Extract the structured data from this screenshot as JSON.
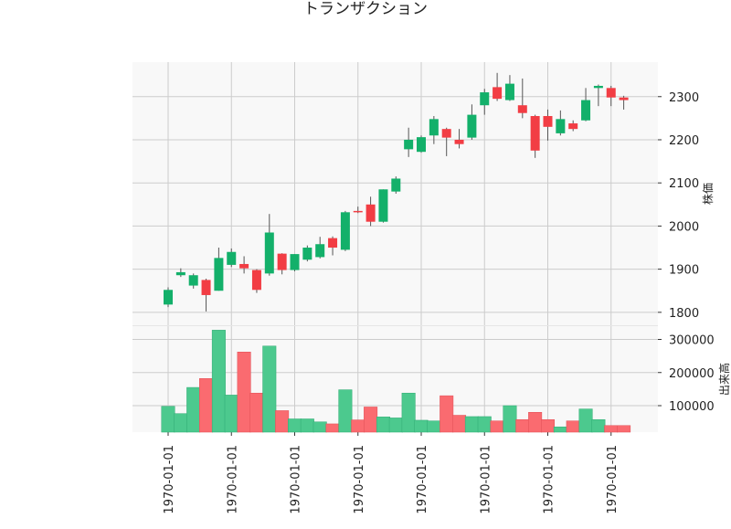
{
  "chart_data": {
    "type": "candlestick",
    "title": "トランザクション",
    "price_axis_label": "株価",
    "volume_axis_label": "出来高",
    "price_ylim": [
      1770,
      2380
    ],
    "volume_ylim": [
      20000,
      340000
    ],
    "price_ticks": [
      1800,
      1900,
      2000,
      2100,
      2200,
      2300
    ],
    "volume_ticks": [
      100000,
      200000,
      300000
    ],
    "volume_tick_labels": [
      "100000",
      "200000",
      "300000"
    ],
    "x_tick_labels": [
      "1970-01-01",
      "1970-01-01",
      "1970-01-01",
      "1970-01-01",
      "1970-01-01",
      "1970-01-01",
      "1970-01-01",
      "1970-01-01"
    ],
    "x_tick_indices": [
      0,
      5,
      10,
      15,
      20,
      25,
      30,
      35
    ],
    "grid": true,
    "colors": {
      "up": "#13b06a",
      "down": "#f23d44",
      "up_volume": "#4cc98e",
      "down_volume": "#fa6b70",
      "wick": "#555555",
      "panel_bg": "#f8f8f8",
      "grid": "#cccccc"
    },
    "candles": [
      {
        "open": 1818,
        "high": 1858,
        "low": 1812,
        "close": 1852
      },
      {
        "open": 1886,
        "high": 1902,
        "low": 1882,
        "close": 1893
      },
      {
        "open": 1862,
        "high": 1890,
        "low": 1855,
        "close": 1886
      },
      {
        "open": 1875,
        "high": 1878,
        "low": 1802,
        "close": 1840
      },
      {
        "open": 1850,
        "high": 1950,
        "low": 1850,
        "close": 1926
      },
      {
        "open": 1910,
        "high": 1948,
        "low": 1905,
        "close": 1940
      },
      {
        "open": 1912,
        "high": 1930,
        "low": 1890,
        "close": 1902
      },
      {
        "open": 1898,
        "high": 1900,
        "low": 1845,
        "close": 1852
      },
      {
        "open": 1890,
        "high": 2028,
        "low": 1885,
        "close": 1985
      },
      {
        "open": 1936,
        "high": 1937,
        "low": 1888,
        "close": 1898
      },
      {
        "open": 1898,
        "high": 1935,
        "low": 1895,
        "close": 1935
      },
      {
        "open": 1922,
        "high": 1955,
        "low": 1918,
        "close": 1950
      },
      {
        "open": 1928,
        "high": 1975,
        "low": 1925,
        "close": 1958
      },
      {
        "open": 1972,
        "high": 1976,
        "low": 1932,
        "close": 1950
      },
      {
        "open": 1945,
        "high": 2035,
        "low": 1942,
        "close": 2032
      },
      {
        "open": 2035,
        "high": 2045,
        "low": 2030,
        "close": 2033
      },
      {
        "open": 2050,
        "high": 2068,
        "low": 2000,
        "close": 2010
      },
      {
        "open": 2010,
        "high": 2085,
        "low": 2008,
        "close": 2085
      },
      {
        "open": 2080,
        "high": 2115,
        "low": 2075,
        "close": 2110
      },
      {
        "open": 2178,
        "high": 2228,
        "low": 2160,
        "close": 2200
      },
      {
        "open": 2172,
        "high": 2210,
        "low": 2170,
        "close": 2206
      },
      {
        "open": 2210,
        "high": 2255,
        "low": 2190,
        "close": 2248
      },
      {
        "open": 2225,
        "high": 2228,
        "low": 2162,
        "close": 2205
      },
      {
        "open": 2200,
        "high": 2225,
        "low": 2180,
        "close": 2190
      },
      {
        "open": 2205,
        "high": 2282,
        "low": 2200,
        "close": 2258
      },
      {
        "open": 2280,
        "high": 2318,
        "low": 2258,
        "close": 2310
      },
      {
        "open": 2322,
        "high": 2355,
        "low": 2290,
        "close": 2295
      },
      {
        "open": 2292,
        "high": 2350,
        "low": 2290,
        "close": 2330
      },
      {
        "open": 2280,
        "high": 2342,
        "low": 2250,
        "close": 2262
      },
      {
        "open": 2255,
        "high": 2258,
        "low": 2158,
        "close": 2175
      },
      {
        "open": 2255,
        "high": 2270,
        "low": 2198,
        "close": 2230
      },
      {
        "open": 2215,
        "high": 2268,
        "low": 2210,
        "close": 2248
      },
      {
        "open": 2238,
        "high": 2245,
        "low": 2220,
        "close": 2225
      },
      {
        "open": 2245,
        "high": 2320,
        "low": 2243,
        "close": 2292
      },
      {
        "open": 2320,
        "high": 2328,
        "low": 2278,
        "close": 2325
      },
      {
        "open": 2320,
        "high": 2325,
        "low": 2278,
        "close": 2298
      },
      {
        "open": 2298,
        "high": 2302,
        "low": 2270,
        "close": 2292
      }
    ],
    "volumes": [
      98000,
      76000,
      155000,
      182000,
      328000,
      132000,
      262000,
      138000,
      280000,
      85000,
      60000,
      60000,
      51000,
      45000,
      148000,
      57000,
      96000,
      66000,
      63000,
      138000,
      56000,
      54000,
      130000,
      71000,
      67000,
      67000,
      54000,
      100000,
      58000,
      80000,
      58000,
      36000,
      54000,
      90000,
      58000,
      40000,
      40000
    ]
  }
}
